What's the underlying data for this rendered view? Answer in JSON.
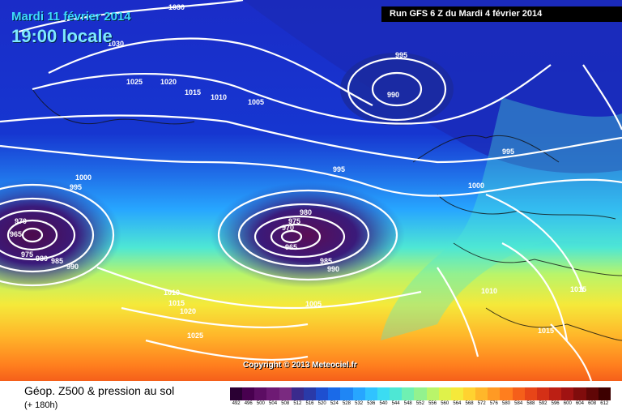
{
  "header": {
    "date": "Mardi 11 février 2014",
    "time": "19:00 locale",
    "run": "Run GFS 6 Z du Mardi 4 février 2014"
  },
  "footer": {
    "title": "Géop. Z500 & pression au sol",
    "subtitle": "(+ 180h)",
    "copyright": "Copyright © 2013 Meteociel.fr"
  },
  "legend": {
    "values": [
      "492",
      "496",
      "500",
      "504",
      "508",
      "512",
      "516",
      "520",
      "524",
      "528",
      "532",
      "536",
      "540",
      "544",
      "548",
      "552",
      "556",
      "560",
      "564",
      "568",
      "572",
      "576",
      "580",
      "584",
      "588",
      "592",
      "596",
      "600",
      "604",
      "608",
      "612"
    ],
    "colors": [
      "#2a0033",
      "#48004f",
      "#5c0d63",
      "#6e1a74",
      "#7a2a80",
      "#3a2a8c",
      "#2a3aa8",
      "#1e4fd0",
      "#1a6ae8",
      "#1f86f5",
      "#27a6ff",
      "#30c3ff",
      "#3bdcf2",
      "#4ee7d4",
      "#6ff0b2",
      "#93f28e",
      "#b9f56a",
      "#dff24a",
      "#f5e93a",
      "#ffd230",
      "#ffb72a",
      "#ff9a24",
      "#ff7e1e",
      "#f55f1a",
      "#e84518",
      "#d43016",
      "#bc1f14",
      "#a01212",
      "#800c0c",
      "#600606",
      "#3d0000"
    ]
  },
  "map": {
    "isobar_labels": [
      "1030",
      "1030",
      "1025",
      "1020",
      "1015",
      "1010",
      "1005",
      "995",
      "990",
      "995",
      "1000",
      "995",
      "995",
      "1000",
      "980",
      "975",
      "970",
      "965",
      "985",
      "990",
      "970",
      "965",
      "975",
      "980",
      "985",
      "990",
      "1010",
      "1015",
      "1020",
      "1025",
      "1005",
      "1010",
      "1015",
      "1015"
    ]
  }
}
